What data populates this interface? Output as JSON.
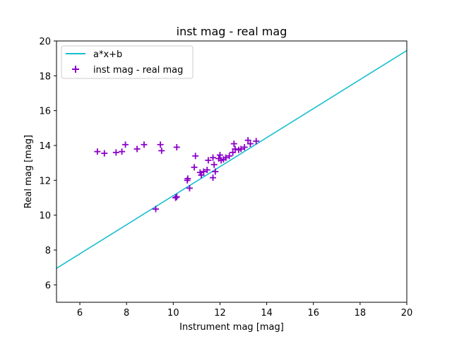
{
  "chart_data": {
    "type": "scatter",
    "title": "inst mag - real mag",
    "xlabel": "Instrument mag [mag]",
    "ylabel": "Real mag [mag]",
    "xlim": [
      5,
      20
    ],
    "ylim": [
      5,
      20
    ],
    "x_ticks": [
      6,
      8,
      10,
      12,
      14,
      16,
      18,
      20
    ],
    "y_ticks": [
      6,
      8,
      10,
      12,
      14,
      16,
      18,
      20
    ],
    "grid": false,
    "legend_position": "top-left",
    "series": [
      {
        "name": "a*x+b",
        "kind": "line",
        "color": "#17becf",
        "points": [
          [
            5,
            6.95
          ],
          [
            20,
            19.45
          ]
        ]
      },
      {
        "name": "inst mag - real mag",
        "kind": "scatter",
        "marker": "plus",
        "color": "#8a00c8",
        "points": [
          [
            6.75,
            13.65
          ],
          [
            7.05,
            13.55
          ],
          [
            7.55,
            13.6
          ],
          [
            7.8,
            13.65
          ],
          [
            7.95,
            14.05
          ],
          [
            8.45,
            13.8
          ],
          [
            8.75,
            14.05
          ],
          [
            9.45,
            14.05
          ],
          [
            9.5,
            13.7
          ],
          [
            9.25,
            10.35
          ],
          [
            10.1,
            11.0
          ],
          [
            10.15,
            13.9
          ],
          [
            10.15,
            11.05
          ],
          [
            10.6,
            12.0
          ],
          [
            10.62,
            12.1
          ],
          [
            10.7,
            11.55
          ],
          [
            10.9,
            12.75
          ],
          [
            10.95,
            13.4
          ],
          [
            11.15,
            12.45
          ],
          [
            11.2,
            12.3
          ],
          [
            11.3,
            12.5
          ],
          [
            11.45,
            12.6
          ],
          [
            11.5,
            13.15
          ],
          [
            11.7,
            12.15
          ],
          [
            11.7,
            13.3
          ],
          [
            11.75,
            12.9
          ],
          [
            11.8,
            12.5
          ],
          [
            11.95,
            13.25
          ],
          [
            12.0,
            13.45
          ],
          [
            12.05,
            13.15
          ],
          [
            12.15,
            13.2
          ],
          [
            12.25,
            13.3
          ],
          [
            12.4,
            13.4
          ],
          [
            12.55,
            13.6
          ],
          [
            12.6,
            14.1
          ],
          [
            12.65,
            13.8
          ],
          [
            12.8,
            13.75
          ],
          [
            12.9,
            13.8
          ],
          [
            13.05,
            13.9
          ],
          [
            13.2,
            14.3
          ],
          [
            13.3,
            14.1
          ],
          [
            13.55,
            14.25
          ]
        ]
      }
    ]
  }
}
